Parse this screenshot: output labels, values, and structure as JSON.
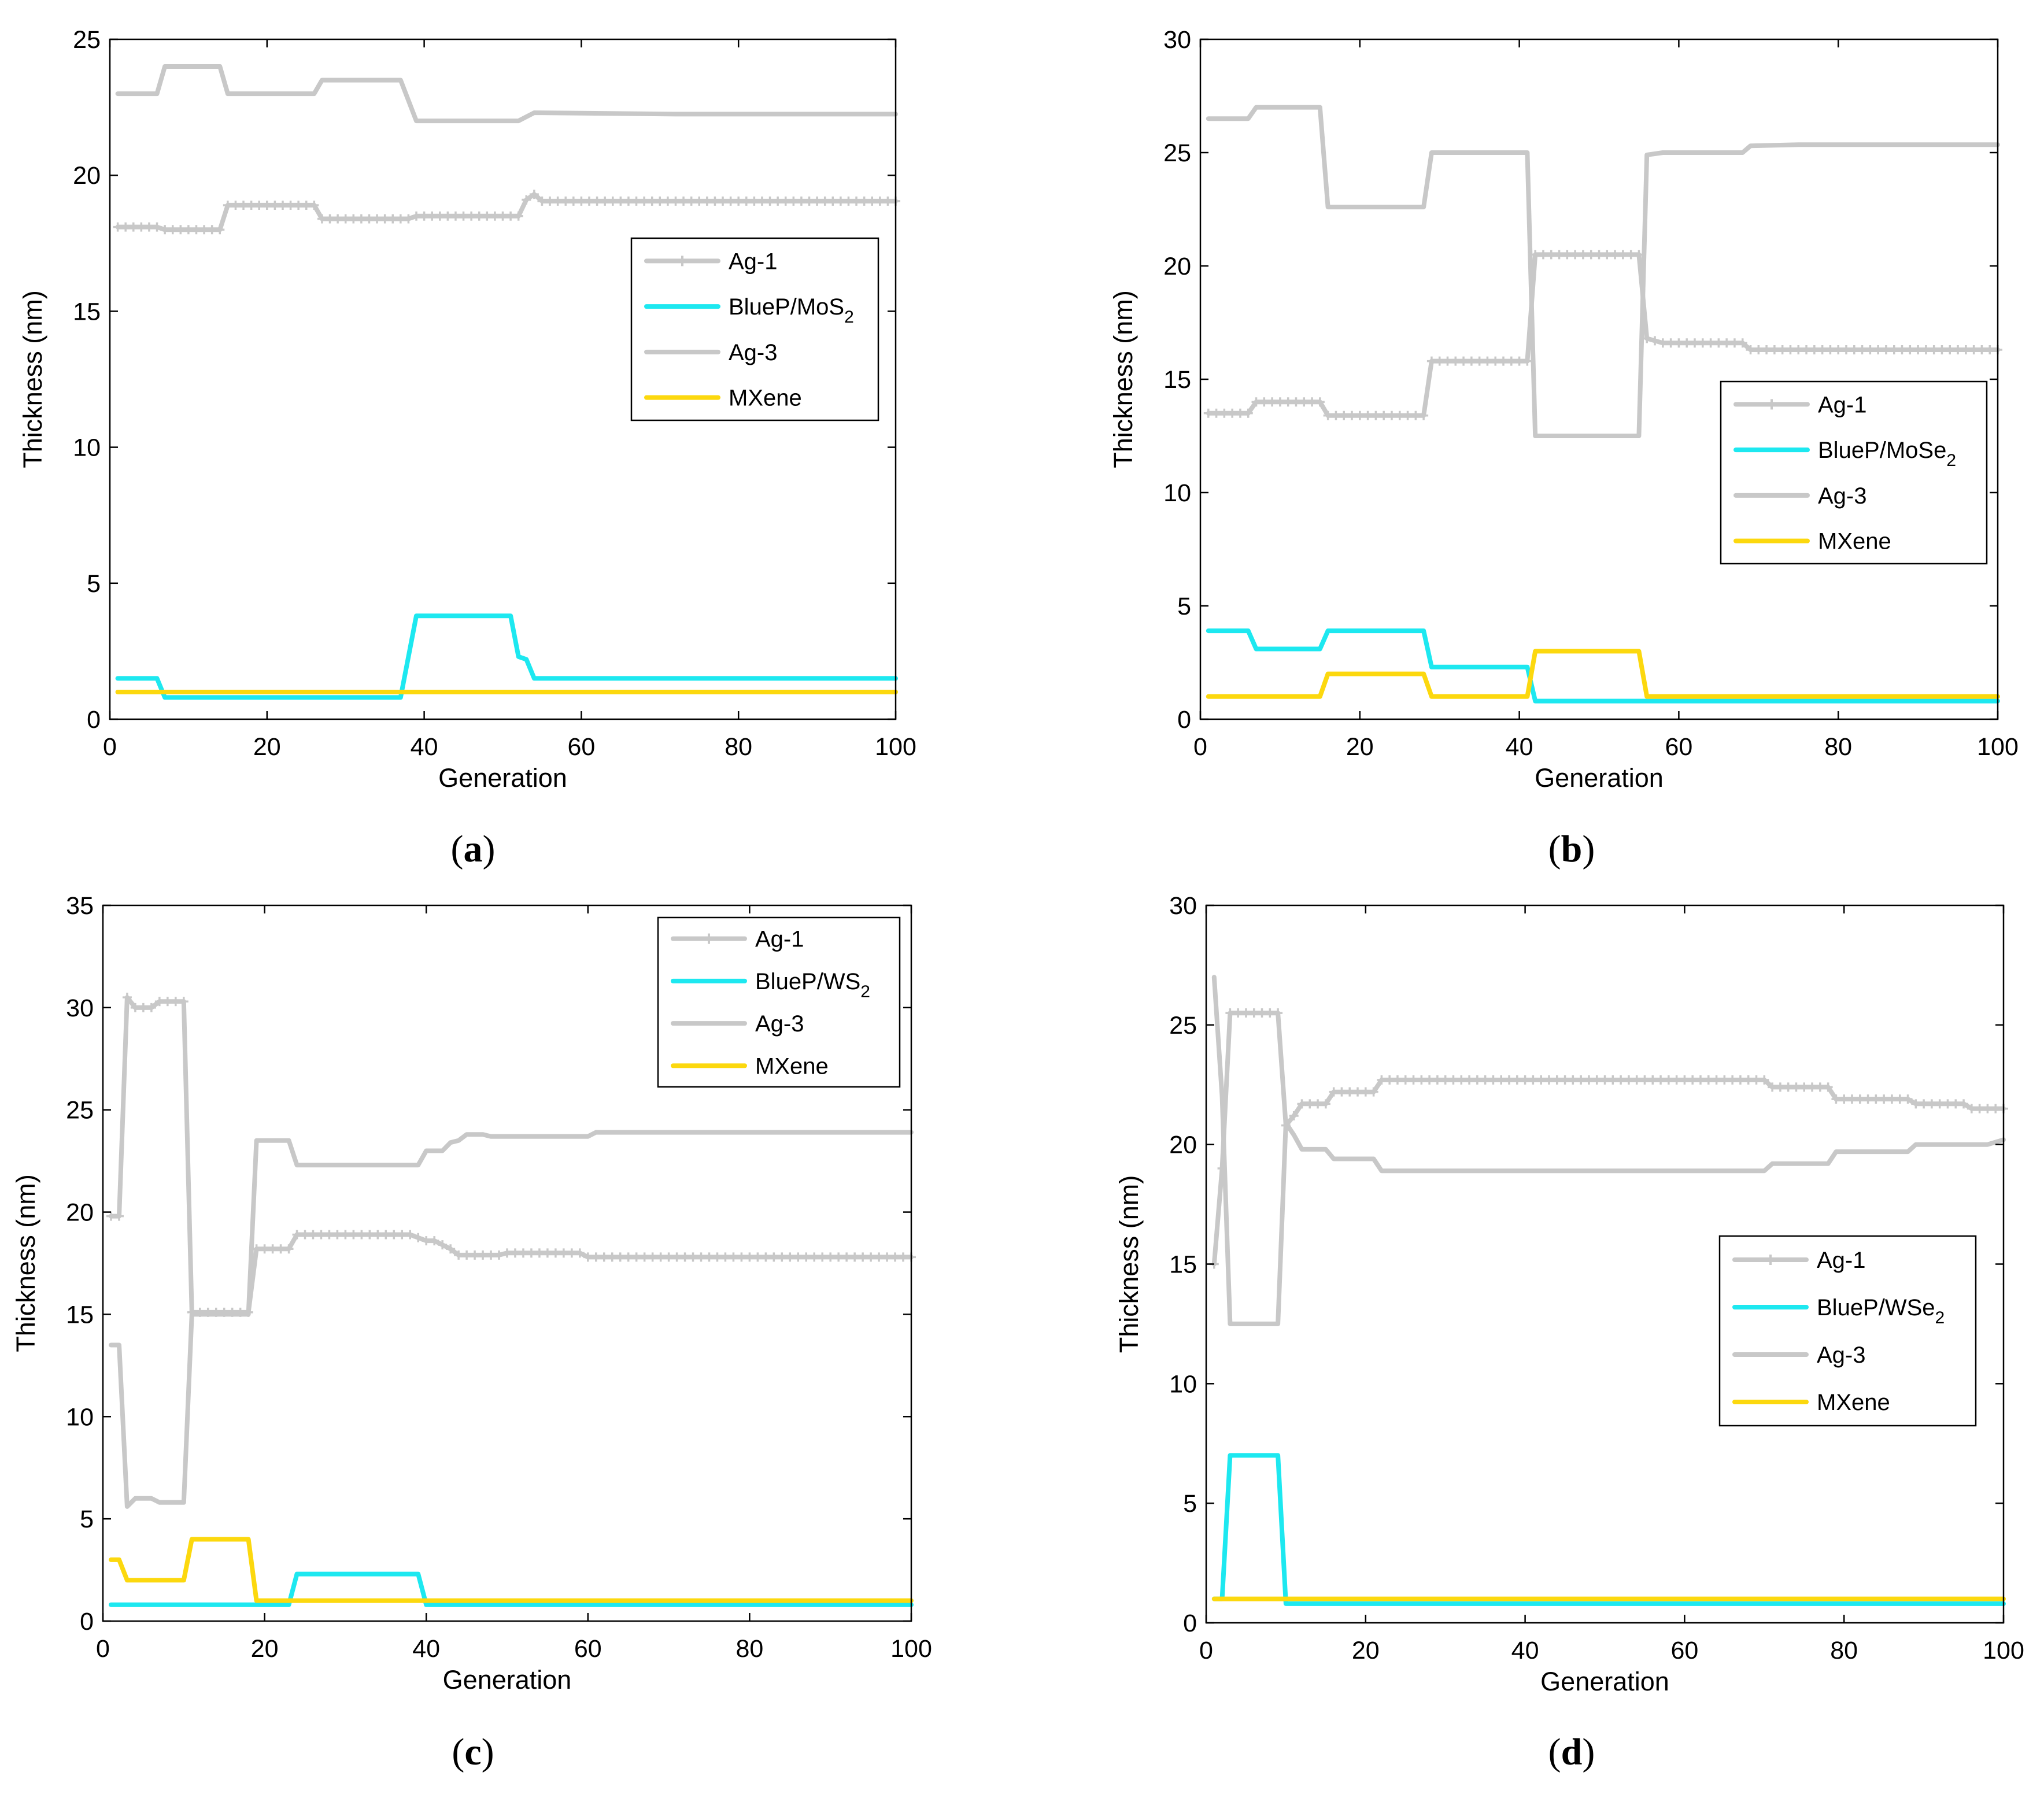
{
  "colors": {
    "ag": "#c8c8c8",
    "bluep": "#1de8f0",
    "mxene": "#fcd80e",
    "axes": "#000000",
    "background": "#ffffff"
  },
  "chart_data": [
    {
      "type": "line",
      "panel_label": "a",
      "xlabel": "Generation",
      "ylabel": "Thickness (nm)",
      "xlim": [
        0,
        100
      ],
      "ylim": [
        0,
        25
      ],
      "xticks": [
        0,
        20,
        40,
        60,
        80,
        100
      ],
      "yticks": [
        0,
        5,
        10,
        15,
        20,
        25
      ],
      "legend_position": "right-middle",
      "legend": [
        {
          "label": "Ag-1",
          "sub": "",
          "color": "ag",
          "marker": true
        },
        {
          "label": "BlueP/MoS",
          "sub": "2",
          "color": "bluep",
          "marker": false
        },
        {
          "label": "Ag-3",
          "sub": "",
          "color": "ag",
          "marker": false
        },
        {
          "label": "MXene",
          "sub": "",
          "color": "mxene",
          "marker": false
        }
      ],
      "series": [
        {
          "name": "Ag-1",
          "color": "ag",
          "marker": true,
          "x": [
            1,
            6,
            7,
            14,
            15,
            26,
            27,
            38,
            39,
            52,
            53,
            54,
            55,
            100
          ],
          "y": [
            18.1,
            18.1,
            18.0,
            18.0,
            18.9,
            18.9,
            18.4,
            18.4,
            18.5,
            18.5,
            19.1,
            19.3,
            19.05,
            19.05
          ]
        },
        {
          "name": "BlueP/MoS2",
          "color": "bluep",
          "marker": false,
          "x": [
            1,
            6,
            7,
            37,
            39,
            51,
            52,
            53,
            54,
            100
          ],
          "y": [
            1.5,
            1.5,
            0.8,
            0.8,
            3.8,
            3.8,
            2.3,
            2.2,
            1.5,
            1.5
          ]
        },
        {
          "name": "Ag-3",
          "color": "ag",
          "marker": false,
          "x": [
            1,
            6,
            7,
            14,
            15,
            26,
            27,
            37,
            39,
            52,
            54,
            72,
            100
          ],
          "y": [
            23.0,
            23.0,
            24.0,
            24.0,
            23.0,
            23.0,
            23.5,
            23.5,
            22.0,
            22.0,
            22.3,
            22.25,
            22.25
          ]
        },
        {
          "name": "MXene",
          "color": "mxene",
          "marker": false,
          "x": [
            1,
            100
          ],
          "y": [
            1.0,
            1.0
          ]
        }
      ]
    },
    {
      "type": "line",
      "panel_label": "b",
      "xlabel": "Generation",
      "ylabel": "Thickness (nm)",
      "xlim": [
        0,
        100
      ],
      "ylim": [
        0,
        30
      ],
      "xticks": [
        0,
        20,
        40,
        60,
        80,
        100
      ],
      "yticks": [
        0,
        5,
        10,
        15,
        20,
        25,
        30
      ],
      "legend_position": "right-middle",
      "legend": [
        {
          "label": "Ag-1",
          "sub": "",
          "color": "ag",
          "marker": true
        },
        {
          "label": "BlueP/MoSe",
          "sub": "2",
          "color": "bluep",
          "marker": false
        },
        {
          "label": "Ag-3",
          "sub": "",
          "color": "ag",
          "marker": false
        },
        {
          "label": "MXene",
          "sub": "",
          "color": "mxene",
          "marker": false
        }
      ],
      "series": [
        {
          "name": "Ag-1",
          "color": "ag",
          "marker": true,
          "x": [
            1,
            6,
            7,
            15,
            16,
            28,
            29,
            41,
            42,
            55,
            56,
            58,
            68,
            69,
            100
          ],
          "y": [
            13.5,
            13.5,
            14.0,
            14.0,
            13.4,
            13.4,
            15.8,
            15.8,
            20.5,
            20.5,
            16.8,
            16.6,
            16.6,
            16.3,
            16.3
          ]
        },
        {
          "name": "BlueP/MoSe2",
          "color": "bluep",
          "marker": false,
          "x": [
            1,
            6,
            7,
            15,
            16,
            28,
            29,
            41,
            42,
            100
          ],
          "y": [
            3.9,
            3.9,
            3.1,
            3.1,
            3.9,
            3.9,
            2.3,
            2.3,
            0.8,
            0.8
          ]
        },
        {
          "name": "Ag-3",
          "color": "ag",
          "marker": false,
          "x": [
            1,
            6,
            7,
            15,
            16,
            28,
            29,
            41,
            42,
            55,
            56,
            58,
            68,
            69,
            75,
            100
          ],
          "y": [
            26.5,
            26.5,
            27.0,
            27.0,
            22.6,
            22.6,
            25.0,
            25.0,
            12.5,
            12.5,
            24.9,
            25.0,
            25.0,
            25.3,
            25.35,
            25.35
          ]
        },
        {
          "name": "MXene",
          "color": "mxene",
          "marker": false,
          "x": [
            1,
            15,
            16,
            28,
            29,
            41,
            42,
            55,
            56,
            100
          ],
          "y": [
            1.0,
            1.0,
            2.0,
            2.0,
            1.0,
            1.0,
            3.0,
            3.0,
            1.0,
            1.0
          ]
        }
      ]
    },
    {
      "type": "line",
      "panel_label": "c",
      "xlabel": "Generation",
      "ylabel": "Thickness (nm)",
      "xlim": [
        0,
        100
      ],
      "ylim": [
        0,
        35
      ],
      "xticks": [
        0,
        20,
        40,
        60,
        80,
        100
      ],
      "yticks": [
        0,
        5,
        10,
        15,
        20,
        25,
        30,
        35
      ],
      "legend_position": "top-right",
      "legend": [
        {
          "label": "Ag-1",
          "sub": "",
          "color": "ag",
          "marker": true
        },
        {
          "label": "BlueP/WS",
          "sub": "2",
          "color": "bluep",
          "marker": false
        },
        {
          "label": "Ag-3",
          "sub": "",
          "color": "ag",
          "marker": false
        },
        {
          "label": "MXene",
          "sub": "",
          "color": "mxene",
          "marker": false
        }
      ],
      "series": [
        {
          "name": "Ag-1",
          "color": "ag",
          "marker": true,
          "x": [
            1,
            2,
            3,
            4,
            6,
            7,
            10,
            11,
            18,
            19,
            23,
            24,
            38,
            40,
            41,
            43,
            44,
            49,
            50,
            59,
            60,
            62,
            100
          ],
          "y": [
            19.8,
            19.8,
            30.5,
            30.0,
            30.0,
            30.3,
            30.3,
            15.1,
            15.1,
            18.2,
            18.2,
            18.9,
            18.9,
            18.6,
            18.6,
            18.2,
            17.9,
            17.9,
            18.0,
            18.0,
            17.8,
            17.8,
            17.8
          ]
        },
        {
          "name": "BlueP/WS2",
          "color": "bluep",
          "marker": false,
          "x": [
            1,
            23,
            24,
            39,
            40,
            100
          ],
          "y": [
            0.8,
            0.8,
            2.3,
            2.3,
            0.8,
            0.8
          ]
        },
        {
          "name": "Ag-3",
          "color": "ag",
          "marker": false,
          "x": [
            1,
            2,
            3,
            4,
            6,
            7,
            10,
            11,
            18,
            19,
            23,
            24,
            39,
            40,
            42,
            43,
            44,
            45,
            47,
            48,
            60,
            61,
            100
          ],
          "y": [
            13.5,
            13.5,
            5.6,
            6.0,
            6.0,
            5.8,
            5.8,
            15.0,
            15.0,
            23.5,
            23.5,
            22.3,
            22.3,
            23.0,
            23.0,
            23.4,
            23.5,
            23.8,
            23.8,
            23.7,
            23.7,
            23.9,
            23.9
          ]
        },
        {
          "name": "MXene",
          "color": "mxene",
          "marker": false,
          "x": [
            1,
            2,
            3,
            10,
            11,
            18,
            19,
            100
          ],
          "y": [
            3.0,
            3.0,
            2.0,
            2.0,
            4.0,
            4.0,
            1.0,
            1.0
          ]
        }
      ]
    },
    {
      "type": "line",
      "panel_label": "d",
      "xlabel": "Generation",
      "ylabel": "Thickness (nm)",
      "xlim": [
        0,
        100
      ],
      "ylim": [
        0,
        30
      ],
      "xticks": [
        0,
        20,
        40,
        60,
        80,
        100
      ],
      "yticks": [
        0,
        5,
        10,
        15,
        20,
        25,
        30
      ],
      "legend_position": "right-middle",
      "legend": [
        {
          "label": "Ag-1",
          "sub": "",
          "color": "ag",
          "marker": true
        },
        {
          "label": "BlueP/WSe",
          "sub": "2",
          "color": "bluep",
          "marker": false
        },
        {
          "label": "Ag-3",
          "sub": "",
          "color": "ag",
          "marker": false
        },
        {
          "label": "MXene",
          "sub": "",
          "color": "mxene",
          "marker": false
        }
      ],
      "series": [
        {
          "name": "Ag-1",
          "color": "ag",
          "marker": true,
          "x": [
            1,
            2,
            3,
            9,
            10,
            11,
            12,
            15,
            16,
            21,
            22,
            70,
            71,
            78,
            79,
            88,
            89,
            95,
            96,
            100
          ],
          "y": [
            15.0,
            19.0,
            25.5,
            25.5,
            20.8,
            21.2,
            21.7,
            21.7,
            22.2,
            22.2,
            22.7,
            22.7,
            22.4,
            22.4,
            21.9,
            21.9,
            21.7,
            21.7,
            21.5,
            21.5
          ]
        },
        {
          "name": "BlueP/WSe2",
          "color": "bluep",
          "marker": false,
          "x": [
            1,
            2,
            3,
            9,
            10,
            100
          ],
          "y": [
            1.0,
            1.0,
            7.0,
            7.0,
            0.8,
            0.8
          ]
        },
        {
          "name": "Ag-3",
          "color": "ag",
          "marker": false,
          "x": [
            1,
            2,
            3,
            9,
            10,
            11,
            12,
            15,
            16,
            21,
            22,
            70,
            71,
            78,
            79,
            88,
            89,
            98,
            100
          ],
          "y": [
            27.0,
            22.0,
            12.5,
            12.5,
            20.9,
            20.4,
            19.8,
            19.8,
            19.4,
            19.4,
            18.9,
            18.9,
            19.2,
            19.2,
            19.7,
            19.7,
            20.0,
            20.0,
            20.2
          ]
        },
        {
          "name": "MXene",
          "color": "mxene",
          "marker": false,
          "x": [
            1,
            100
          ],
          "y": [
            1.0,
            1.0
          ]
        }
      ]
    }
  ]
}
